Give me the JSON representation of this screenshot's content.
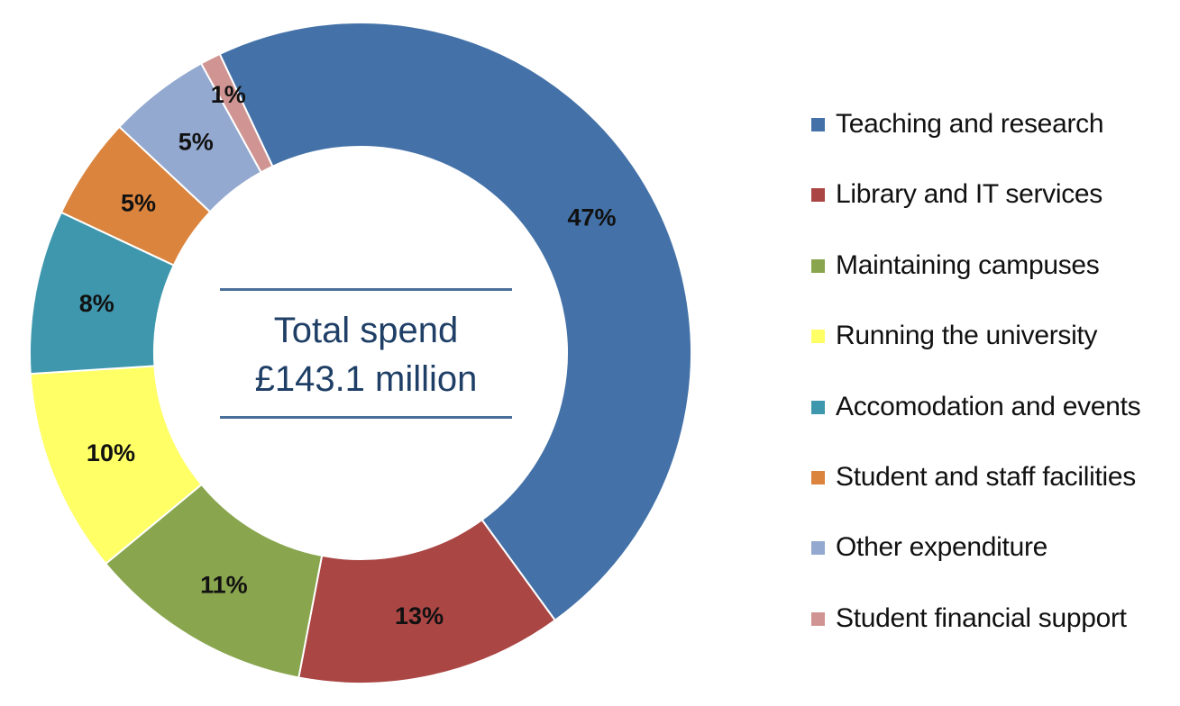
{
  "chart_data": {
    "type": "pie",
    "donut": true,
    "center_text": {
      "line1": "Total spend",
      "line2": "£143.1 million"
    },
    "legend_position": "right",
    "series": [
      {
        "name": "Teaching and research",
        "value": 47,
        "label": "47%",
        "color": "#4472A8"
      },
      {
        "name": "Library and IT services",
        "value": 13,
        "label": "13%",
        "color": "#AA4644"
      },
      {
        "name": "Maintaining campuses",
        "value": 11,
        "label": "11%",
        "color": "#89A54E"
      },
      {
        "name": "Running the university",
        "value": 10,
        "label": "10%",
        "color": "#FFFF66"
      },
      {
        "name": "Accomodation and events",
        "value": 8,
        "label": "8%",
        "color": "#3F97AD"
      },
      {
        "name": "Student and staff facilities",
        "value": 5,
        "label": "5%",
        "color": "#DB843D"
      },
      {
        "name": "Other expenditure",
        "value": 5,
        "label": "5%",
        "color": "#93A9D0"
      },
      {
        "name": "Student financial support",
        "value": 1,
        "label": "1%",
        "color": "#D09593"
      }
    ]
  }
}
